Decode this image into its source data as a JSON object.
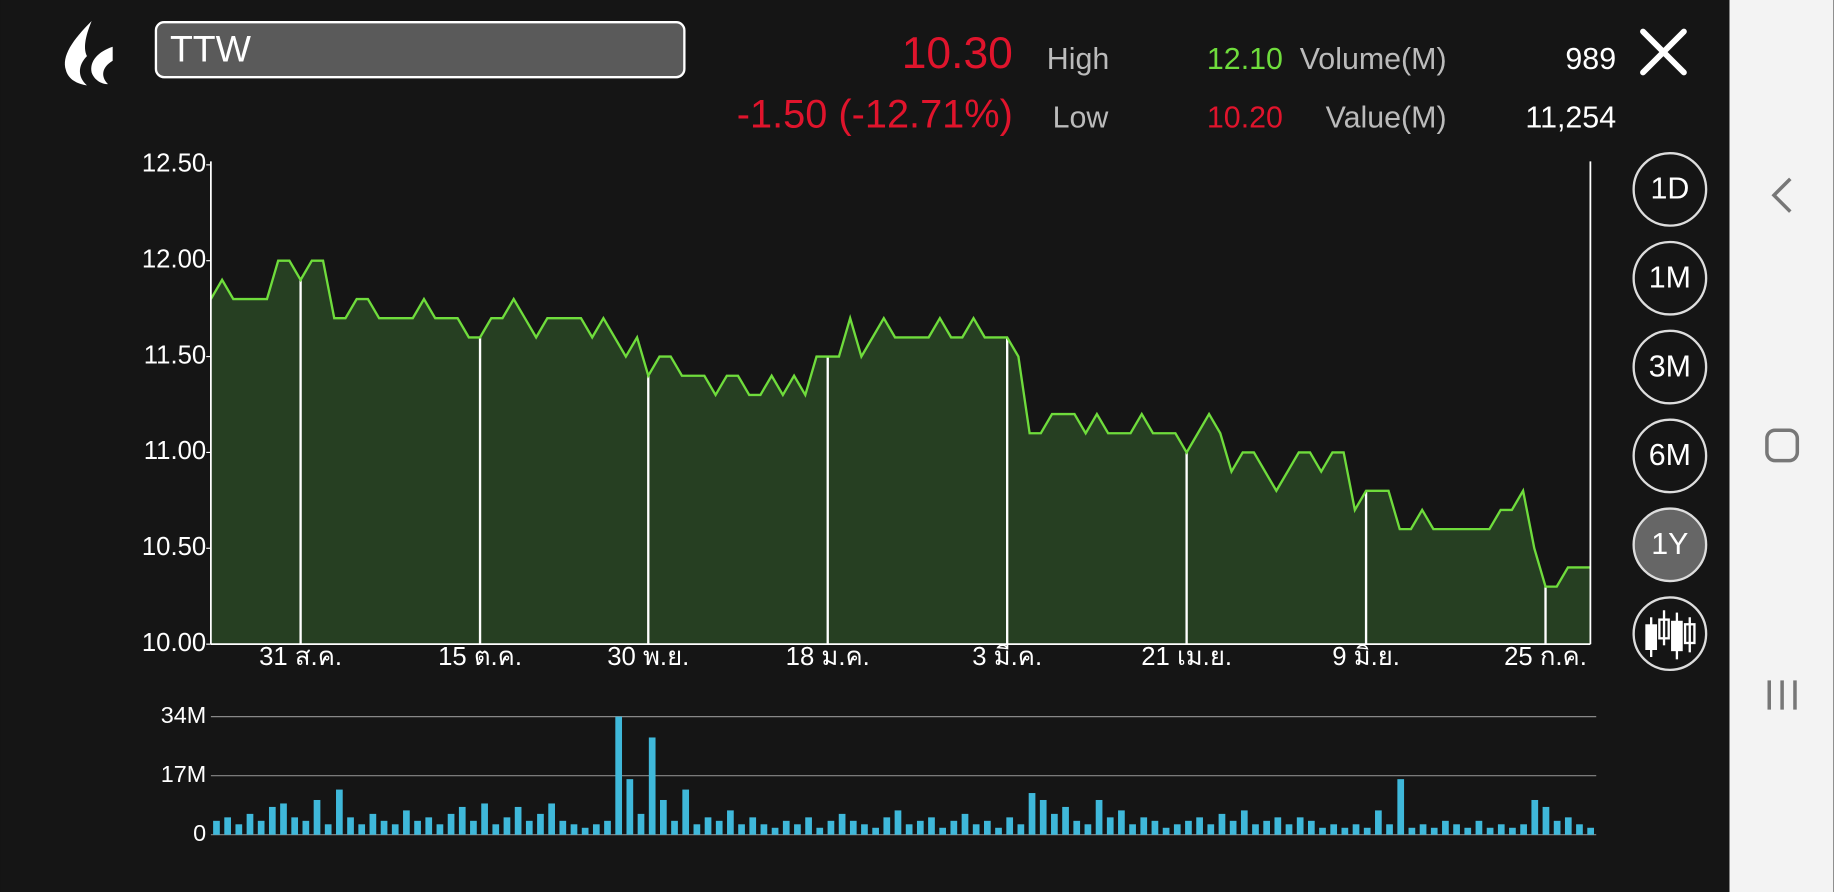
{
  "header": {
    "symbol": "TTW",
    "price": "10.30",
    "change": "-1.50 (-12.71%)",
    "high_label": "High",
    "high": "12.10",
    "low_label": "Low",
    "low": "10.20",
    "volume_label": "Volume(M)",
    "volume": "989",
    "value_label": "Value(M)",
    "value": "11,254"
  },
  "periods": [
    "1D",
    "1M",
    "3M",
    "6M",
    "1Y"
  ],
  "selected_period": 4,
  "chart_data": [
    {
      "type": "area",
      "color": "#6fdc3c",
      "categories": [
        null,
        null,
        null,
        null,
        null,
        null,
        null,
        null,
        "31 ส.ค.",
        null,
        null,
        null,
        null,
        null,
        null,
        null,
        null,
        null,
        null,
        null,
        null,
        null,
        null,
        null,
        "15 ต.ค.",
        null,
        null,
        null,
        null,
        null,
        null,
        null,
        null,
        null,
        null,
        null,
        null,
        null,
        null,
        "30 พ.ย.",
        null,
        null,
        null,
        null,
        null,
        null,
        null,
        null,
        null,
        null,
        null,
        null,
        null,
        null,
        null,
        "18 ม.ค.",
        null,
        null,
        null,
        null,
        null,
        null,
        null,
        null,
        null,
        null,
        null,
        null,
        null,
        null,
        null,
        "3 มี.ค.",
        null,
        null,
        null,
        null,
        null,
        null,
        null,
        null,
        null,
        null,
        null,
        null,
        null,
        null,
        null,
        "21 เม.ย.",
        null,
        null,
        null,
        null,
        null,
        null,
        null,
        null,
        null,
        null,
        null,
        null,
        null,
        null,
        null,
        "9 มิ.ย.",
        null,
        null,
        null,
        null,
        null,
        null,
        null,
        null,
        null,
        null,
        null,
        null,
        null,
        null,
        null,
        "25 ก.ค.",
        null,
        null,
        null,
        null
      ],
      "values": [
        11.8,
        11.9,
        11.8,
        11.8,
        11.8,
        11.8,
        12.0,
        12.0,
        11.9,
        12.0,
        12.0,
        11.7,
        11.7,
        11.8,
        11.8,
        11.7,
        11.7,
        11.7,
        11.7,
        11.8,
        11.7,
        11.7,
        11.7,
        11.6,
        11.6,
        11.7,
        11.7,
        11.8,
        11.7,
        11.6,
        11.7,
        11.7,
        11.7,
        11.7,
        11.6,
        11.7,
        11.6,
        11.5,
        11.6,
        11.4,
        11.5,
        11.5,
        11.4,
        11.4,
        11.4,
        11.3,
        11.4,
        11.4,
        11.3,
        11.3,
        11.4,
        11.3,
        11.4,
        11.3,
        11.5,
        11.5,
        11.5,
        11.7,
        11.5,
        11.6,
        11.7,
        11.6,
        11.6,
        11.6,
        11.6,
        11.7,
        11.6,
        11.6,
        11.7,
        11.6,
        11.6,
        11.6,
        11.5,
        11.1,
        11.1,
        11.2,
        11.2,
        11.2,
        11.1,
        11.2,
        11.1,
        11.1,
        11.1,
        11.2,
        11.1,
        11.1,
        11.1,
        11.0,
        11.1,
        11.2,
        11.1,
        10.9,
        11.0,
        11.0,
        10.9,
        10.8,
        10.9,
        11.0,
        11.0,
        10.9,
        11.0,
        11.0,
        10.7,
        10.8,
        10.8,
        10.8,
        10.6,
        10.6,
        10.7,
        10.6,
        10.6,
        10.6,
        10.6,
        10.6,
        10.6,
        10.7,
        10.7,
        10.8,
        10.5,
        10.3,
        10.3,
        10.4,
        10.4,
        10.4
      ],
      "ylim": [
        10,
        12.5
      ],
      "yticks": [
        {
          "value": 10,
          "label": "10.00"
        },
        {
          "value": 10.5,
          "label": "10.50"
        },
        {
          "value": 11,
          "label": "11.00"
        },
        {
          "value": 11.5,
          "label": "11.50"
        },
        {
          "value": 12,
          "label": "12.00"
        },
        {
          "value": 12.5,
          "label": "12.50"
        }
      ]
    },
    {
      "type": "bar",
      "color": "#3fb8da",
      "values": [
        4,
        5,
        3,
        6,
        4,
        8,
        9,
        5,
        4,
        10,
        3,
        13,
        5,
        3,
        6,
        4,
        3,
        7,
        4,
        5,
        3,
        6,
        8,
        4,
        9,
        3,
        5,
        8,
        4,
        6,
        9,
        4,
        3,
        2,
        3,
        4,
        34,
        16,
        6,
        28,
        10,
        4,
        13,
        3,
        5,
        4,
        7,
        3,
        5,
        3,
        2,
        4,
        3,
        5,
        2,
        4,
        6,
        4,
        3,
        2,
        5,
        7,
        3,
        4,
        5,
        2,
        4,
        6,
        3,
        4,
        2,
        5,
        3,
        12,
        10,
        6,
        8,
        4,
        3,
        10,
        5,
        7,
        3,
        5,
        4,
        2,
        3,
        4,
        5,
        3,
        6,
        4,
        7,
        3,
        4,
        5,
        3,
        5,
        4,
        2,
        3,
        2,
        3,
        2,
        7,
        3,
        16,
        2,
        3,
        2,
        4,
        3,
        2,
        4,
        2,
        3,
        2,
        3,
        10,
        8,
        4,
        5,
        3,
        2
      ],
      "ylim": [
        0,
        34
      ],
      "yticks": [
        0,
        {
          "value": 17,
          "label": "17M"
        },
        {
          "value": 34,
          "label": "34M"
        }
      ],
      "grid": true
    }
  ]
}
